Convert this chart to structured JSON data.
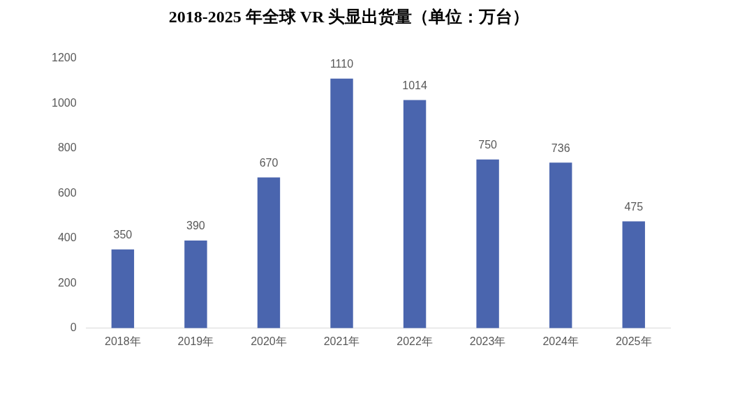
{
  "chart_data": {
    "type": "bar",
    "title": "2018-2025 年全球 VR 头显出货量（单位：万台）",
    "categories": [
      "2018年",
      "2019年",
      "2020年",
      "2021年",
      "2022年",
      "2023年",
      "2024年",
      "2025年"
    ],
    "values": [
      350,
      390,
      670,
      1110,
      1014,
      750,
      736,
      475
    ],
    "color": "#4a65ae",
    "ylim": [
      0,
      1200
    ],
    "yticks": [
      0,
      200,
      400,
      600,
      800,
      1000,
      1200
    ],
    "data_labels": true
  }
}
